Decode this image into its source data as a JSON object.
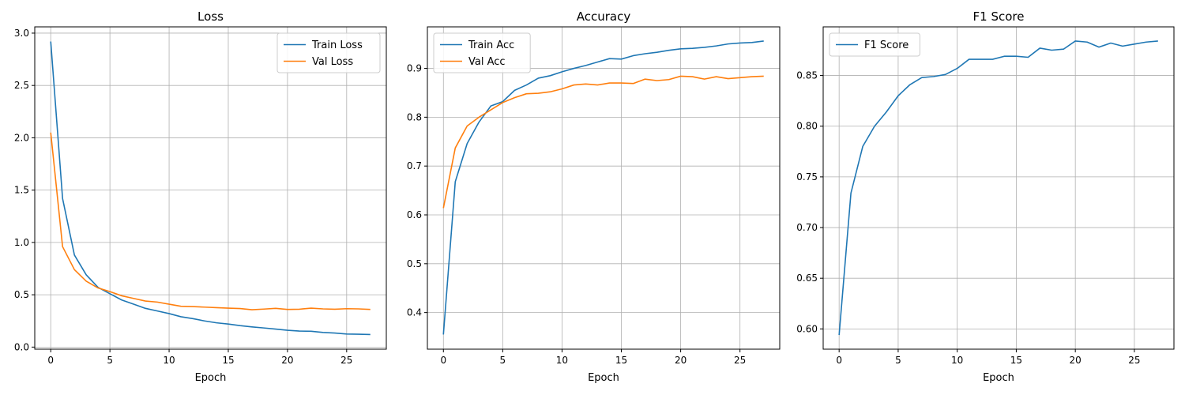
{
  "colors": {
    "blue": "#1f77b4",
    "orange": "#ff7f0e"
  },
  "chart_data": [
    {
      "type": "line",
      "title": "Loss",
      "xlabel": "Epoch",
      "ylabel": "",
      "xlim": [
        -1.35,
        28.35
      ],
      "ylim": [
        -0.02,
        3.06
      ],
      "xticks": [
        0,
        5,
        10,
        15,
        20,
        25
      ],
      "yticks": [
        0.0,
        0.5,
        1.0,
        1.5,
        2.0,
        2.5,
        3.0
      ],
      "ytick_labels": [
        "0.0",
        "0.5",
        "1.0",
        "1.5",
        "2.0",
        "2.5",
        "3.0"
      ],
      "grid": true,
      "legend": "top-right",
      "x": [
        0,
        1,
        2,
        3,
        4,
        5,
        6,
        7,
        8,
        9,
        10,
        11,
        12,
        13,
        14,
        15,
        16,
        17,
        18,
        19,
        20,
        21,
        22,
        23,
        24,
        25,
        26,
        27
      ],
      "series": [
        {
          "name": "Train Loss",
          "color": "#1f77b4",
          "values": [
            2.92,
            1.42,
            0.88,
            0.69,
            0.57,
            0.51,
            0.45,
            0.41,
            0.37,
            0.345,
            0.32,
            0.29,
            0.272,
            0.25,
            0.232,
            0.22,
            0.205,
            0.193,
            0.183,
            0.172,
            0.161,
            0.153,
            0.151,
            0.14,
            0.134,
            0.125,
            0.123,
            0.12
          ]
        },
        {
          "name": "Val Loss",
          "color": "#ff7f0e",
          "values": [
            2.05,
            0.96,
            0.74,
            0.63,
            0.565,
            0.53,
            0.49,
            0.465,
            0.44,
            0.43,
            0.41,
            0.39,
            0.387,
            0.382,
            0.377,
            0.372,
            0.368,
            0.357,
            0.363,
            0.37,
            0.36,
            0.362,
            0.372,
            0.365,
            0.362,
            0.367,
            0.365,
            0.36
          ]
        }
      ]
    },
    {
      "type": "line",
      "title": "Accuracy",
      "xlabel": "Epoch",
      "ylabel": "",
      "xlim": [
        -1.35,
        28.35
      ],
      "ylim": [
        0.325,
        0.985
      ],
      "xticks": [
        0,
        5,
        10,
        15,
        20,
        25
      ],
      "yticks": [
        0.4,
        0.5,
        0.6,
        0.7,
        0.8,
        0.9
      ],
      "ytick_labels": [
        "0.4",
        "0.5",
        "0.6",
        "0.7",
        "0.8",
        "0.9"
      ],
      "grid": true,
      "legend": "top-left",
      "x": [
        0,
        1,
        2,
        3,
        4,
        5,
        6,
        7,
        8,
        9,
        10,
        11,
        12,
        13,
        14,
        15,
        16,
        17,
        18,
        19,
        20,
        21,
        22,
        23,
        24,
        25,
        26,
        27
      ],
      "series": [
        {
          "name": "Train Acc",
          "color": "#1f77b4",
          "values": [
            0.355,
            0.668,
            0.746,
            0.79,
            0.823,
            0.832,
            0.855,
            0.866,
            0.88,
            0.885,
            0.893,
            0.9,
            0.906,
            0.913,
            0.92,
            0.919,
            0.926,
            0.93,
            0.933,
            0.937,
            0.94,
            0.941,
            0.943,
            0.946,
            0.95,
            0.952,
            0.953,
            0.956
          ]
        },
        {
          "name": "Val Acc",
          "color": "#ff7f0e",
          "values": [
            0.614,
            0.737,
            0.782,
            0.8,
            0.815,
            0.83,
            0.84,
            0.848,
            0.849,
            0.852,
            0.858,
            0.866,
            0.868,
            0.866,
            0.87,
            0.87,
            0.869,
            0.878,
            0.875,
            0.877,
            0.884,
            0.883,
            0.878,
            0.883,
            0.879,
            0.881,
            0.883,
            0.884
          ]
        }
      ]
    },
    {
      "type": "line",
      "title": "F1 Score",
      "xlabel": "Epoch",
      "ylabel": "",
      "xlim": [
        -1.35,
        28.35
      ],
      "ylim": [
        0.58,
        0.898
      ],
      "xticks": [
        0,
        5,
        10,
        15,
        20,
        25
      ],
      "yticks": [
        0.6,
        0.65,
        0.7,
        0.75,
        0.8,
        0.85
      ],
      "ytick_labels": [
        "0.60",
        "0.65",
        "0.70",
        "0.75",
        "0.80",
        "0.85"
      ],
      "grid": true,
      "legend": "top-left",
      "x": [
        0,
        1,
        2,
        3,
        4,
        5,
        6,
        7,
        8,
        9,
        10,
        11,
        12,
        13,
        14,
        15,
        16,
        17,
        18,
        19,
        20,
        21,
        22,
        23,
        24,
        25,
        26,
        27
      ],
      "series": [
        {
          "name": "F1 Score",
          "color": "#1f77b4",
          "values": [
            0.594,
            0.734,
            0.78,
            0.8,
            0.814,
            0.83,
            0.841,
            0.848,
            0.849,
            0.851,
            0.857,
            0.866,
            0.866,
            0.866,
            0.869,
            0.869,
            0.868,
            0.877,
            0.875,
            0.876,
            0.884,
            0.883,
            0.878,
            0.882,
            0.879,
            0.881,
            0.883,
            0.884
          ]
        }
      ]
    }
  ]
}
